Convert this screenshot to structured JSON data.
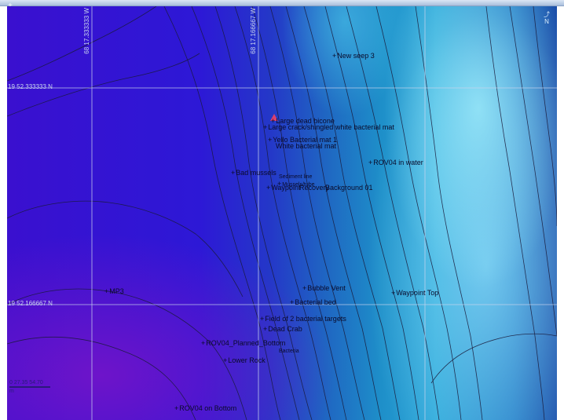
{
  "grid": {
    "latitudes": [
      "19 52.333333 N",
      "19 52.166667 N"
    ],
    "longitudes": [
      "68 17.333333 W",
      "68 17.166667 W"
    ]
  },
  "north_label": "N",
  "scale_label": "0  27.35  54.70",
  "scale_units": "m",
  "colors": {
    "deep": "#3a10cf",
    "shallow": "#2aa6d8",
    "contour": "#1a1a3a",
    "grid": "#c9d4ee"
  },
  "features": [
    {
      "label": "New seep 3"
    },
    {
      "label": "Large dead bicone"
    },
    {
      "label": "Large crack/shingled white bacterial mat"
    },
    {
      "label": "Yello Bacterial mat 1"
    },
    {
      "label": "White bacterial mat"
    },
    {
      "label": "ROV04 in water"
    },
    {
      "label": "Bad mussels"
    },
    {
      "label": "Sediment line"
    },
    {
      "label": "Mussels/tube"
    },
    {
      "label": "Waypoint"
    },
    {
      "label": "Recovery"
    },
    {
      "label": "Background 01"
    },
    {
      "label": "MP3"
    },
    {
      "label": "Bubble Vent"
    },
    {
      "label": "Waypoint Top"
    },
    {
      "label": "Bacterial bed"
    },
    {
      "label": "Field of 2 bacterial targets"
    },
    {
      "label": "Dead Crab"
    },
    {
      "label": "ROV04_Planned_Bottom"
    },
    {
      "label": "Bacteria"
    },
    {
      "label": "Lower Rock"
    },
    {
      "label": "ROV04 on Bottom"
    }
  ]
}
